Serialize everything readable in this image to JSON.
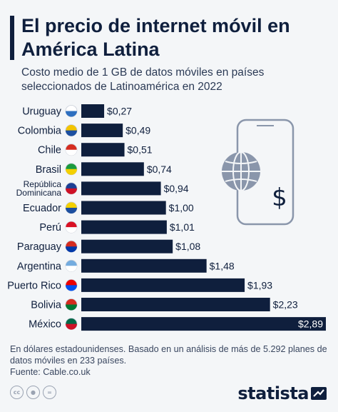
{
  "header": {
    "title": "El precio de internet móvil en América Latina",
    "subtitle": "Costo medio de 1 GB de datos móviles en países seleccionados de Latinoamérica en 2022"
  },
  "chart_data": {
    "type": "bar",
    "orientation": "horizontal",
    "categories": [
      "Uruguay",
      "Colombia",
      "Chile",
      "Brasil",
      "República Dominicana",
      "Ecuador",
      "Perú",
      "Paraguay",
      "Argentina",
      "Puerto Rico",
      "Bolivia",
      "México"
    ],
    "values": [
      0.27,
      0.49,
      0.51,
      0.74,
      0.94,
      1.0,
      1.01,
      1.08,
      1.48,
      1.93,
      2.23,
      2.89
    ],
    "value_labels": [
      "$0,27",
      "$0,49",
      "$0,51",
      "$0,74",
      "$0,94",
      "$1,00",
      "$1,01",
      "$1,08",
      "$1,48",
      "$1,93",
      "$2,23",
      "$2,89"
    ],
    "title": "",
    "xlabel": "",
    "ylabel": "",
    "xlim": [
      0,
      2.89
    ],
    "grid": false,
    "bar_color": "#0f1f3d"
  },
  "footer": {
    "note": "En dólares estadounidenses. Basado en un análisis de más de 5.292 planes de datos móviles en 233 países.",
    "source": "Fuente: Cable.co.uk",
    "brand": "statista"
  },
  "icons": {
    "illustration": "smartphone-globe-dollar-icon",
    "license": [
      "cc-icon",
      "person-icon",
      "no-derivatives-icon"
    ],
    "logo": "statista-logo"
  },
  "colors": {
    "primary": "#0f1f3d",
    "background": "#f4f6f8",
    "illustration": "#8a96ab"
  }
}
